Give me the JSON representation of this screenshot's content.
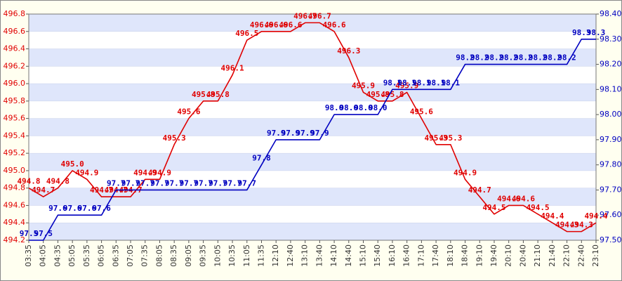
{
  "chart_data": {
    "type": "line",
    "categories": [
      "03:35",
      "04:05",
      "04:35",
      "05:05",
      "05:35",
      "06:05",
      "06:35",
      "07:05",
      "07:35",
      "08:05",
      "08:35",
      "09:05",
      "09:35",
      "10:05",
      "10:35",
      "11:05",
      "11:35",
      "12:10",
      "12:40",
      "13:10",
      "13:40",
      "14:10",
      "14:40",
      "15:10",
      "15:40",
      "16:10",
      "16:40",
      "17:10",
      "17:40",
      "18:10",
      "18:40",
      "19:10",
      "19:40",
      "20:10",
      "20:40",
      "21:10",
      "21:40",
      "22:10",
      "22:40",
      "23:10"
    ],
    "series": [
      {
        "color": "#e00000",
        "axis": "y",
        "values": [
          494.8,
          494.7,
          494.8,
          495.0,
          494.9,
          494.7,
          494.7,
          494.7,
          494.9,
          494.9,
          495.3,
          495.6,
          495.8,
          495.8,
          496.1,
          496.5,
          496.6,
          496.6,
          496.6,
          496.7,
          496.7,
          496.6,
          496.3,
          495.9,
          495.8,
          495.8,
          495.9,
          495.6,
          495.3,
          495.3,
          494.9,
          494.7,
          494.5,
          494.6,
          494.6,
          494.5,
          494.4,
          494.3,
          494.3,
          494.4
        ],
        "value_labels": [
          "494.8",
          "494.7",
          "494.8",
          "495.0",
          "494.9",
          "494.7",
          "494.7",
          "494.7",
          "494.9",
          "494.9",
          "495.3",
          "495.6",
          "495.8",
          "495.8",
          "496.1",
          "496.5",
          "496.6",
          "496.6",
          "496.6",
          "496.7",
          "496.7",
          "496.6",
          "496.3",
          "495.9",
          "495.8",
          "495.8",
          "495.9",
          "495.6",
          "495.3",
          "495.3",
          "494.9",
          "494.7",
          "494.5",
          "494.6",
          "494.6",
          "494.5",
          "494.4",
          "494.3",
          "494.3",
          "494.4"
        ]
      },
      {
        "color": "#0000c0",
        "axis": "y2",
        "values": [
          97.5,
          97.5,
          97.6,
          97.6,
          97.6,
          97.6,
          97.7,
          97.7,
          97.7,
          97.7,
          97.7,
          97.7,
          97.7,
          97.7,
          97.7,
          97.7,
          97.8,
          97.9,
          97.9,
          97.9,
          97.9,
          98.0,
          98.0,
          98.0,
          98.0,
          98.1,
          98.1,
          98.1,
          98.1,
          98.1,
          98.2,
          98.2,
          98.2,
          98.2,
          98.2,
          98.2,
          98.2,
          98.2,
          98.3,
          98.3
        ],
        "value_labels": [
          "97.5",
          "97.5",
          "97.6",
          "97.6",
          "97.6",
          "97.6",
          "97.7",
          "97.7",
          "97.7",
          "97.7",
          "97.7",
          "97.7",
          "97.7",
          "97.7",
          "97.7",
          "97.7",
          "97.8",
          "97.9",
          "97.9",
          "97.9",
          "97.9",
          "98.0",
          "98.0",
          "98.0",
          "98.0",
          "98.1",
          "98.1",
          "98.1",
          "98.1",
          "98.1",
          "98.2",
          "98.2",
          "98.2",
          "98.2",
          "98.2",
          "98.2",
          "98.2",
          "98.2",
          "98.3",
          "98.3"
        ]
      }
    ],
    "ylim": [
      494.2,
      496.8
    ],
    "yticks": [
      {
        "value": 494.2,
        "label": "494.2"
      },
      {
        "value": 494.4,
        "label": "494.4"
      },
      {
        "value": 494.6,
        "label": "494.6"
      },
      {
        "value": 494.8,
        "label": "494.8"
      },
      {
        "value": 495.0,
        "label": "495.0"
      },
      {
        "value": 495.2,
        "label": "495.2"
      },
      {
        "value": 495.4,
        "label": "495.4"
      },
      {
        "value": 495.6,
        "label": "495.6"
      },
      {
        "value": 495.8,
        "label": "495.8"
      },
      {
        "value": 496.0,
        "label": "496.0"
      },
      {
        "value": 496.2,
        "label": "496.2"
      },
      {
        "value": 496.4,
        "label": "496.4"
      },
      {
        "value": 496.6,
        "label": "496.6"
      },
      {
        "value": 496.8,
        "label": "496.8"
      }
    ],
    "y2lim": [
      97.5,
      98.4
    ],
    "y2ticks": [
      {
        "value": 97.5,
        "label": "97.50"
      },
      {
        "value": 97.6,
        "label": "97.60"
      },
      {
        "value": 97.7,
        "label": "97.70"
      },
      {
        "value": 97.8,
        "label": "97.80"
      },
      {
        "value": 97.9,
        "label": "97.90"
      },
      {
        "value": 98.0,
        "label": "98.00"
      },
      {
        "value": 98.1,
        "label": "98.10"
      },
      {
        "value": 98.2,
        "label": "98.20"
      },
      {
        "value": 98.3,
        "label": "98.30"
      },
      {
        "value": 98.4,
        "label": "98.40"
      }
    ],
    "grid": true
  }
}
